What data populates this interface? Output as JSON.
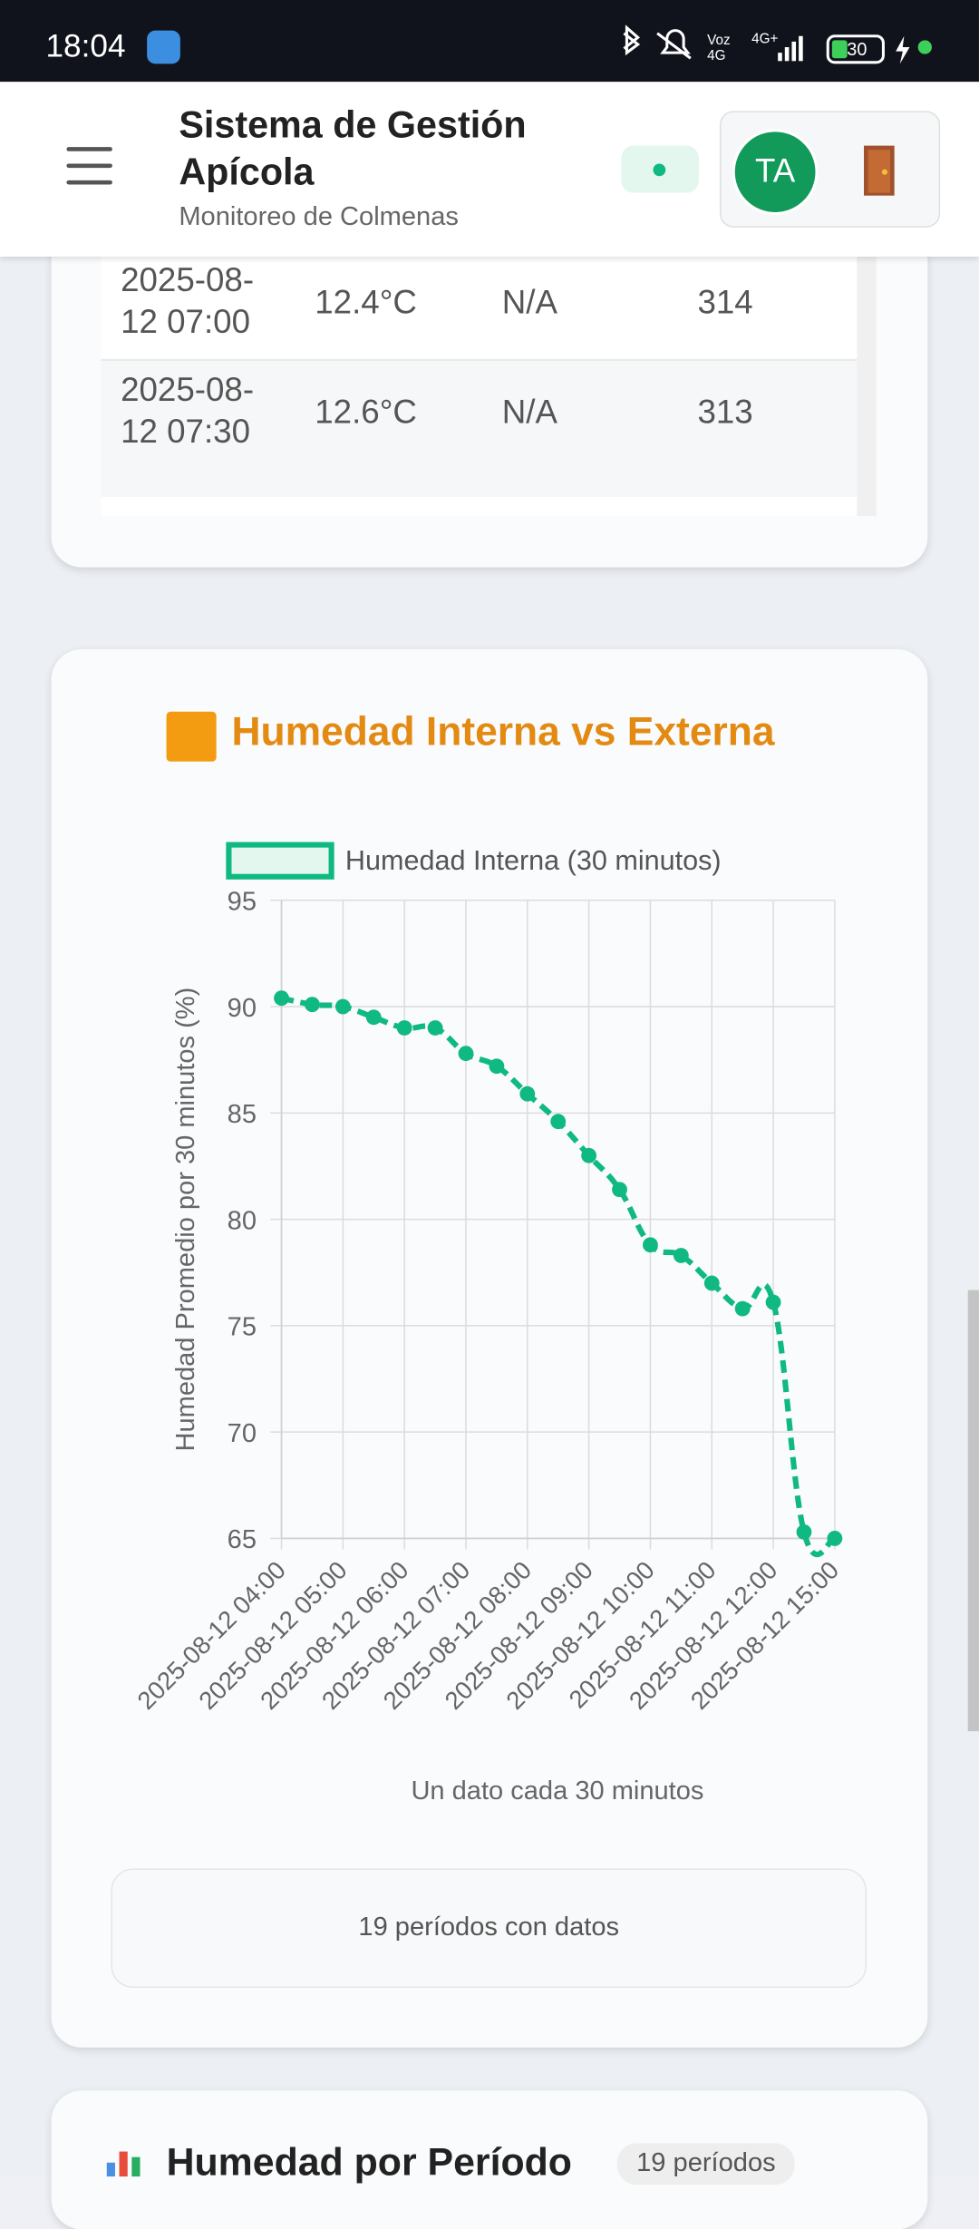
{
  "status_bar": {
    "time": "18:04",
    "battery": "30"
  },
  "header": {
    "title": "Sistema de Gestión Apícola",
    "subtitle": "Monitoreo de Colmenas",
    "avatar": "TA"
  },
  "table": {
    "rows": [
      [
        "2025-08-12 07:00",
        "12.4°C",
        "N/A",
        314
      ],
      [
        "2025-08-12 07:30",
        "12.6°C",
        "N/A",
        313
      ]
    ]
  },
  "chart_data": {
    "type": "line",
    "title": "Humedad Interna vs Externa",
    "y_label": "Humedad Promedio por 30 minutos (%)",
    "x_label": "Un dato cada 30 minutos",
    "categories": [
      "2025-08-12 04:00",
      null,
      "2025-08-12 05:00",
      null,
      "2025-08-12 06:00",
      null,
      "2025-08-12 07:00",
      null,
      "2025-08-12 08:00",
      null,
      "2025-08-12 09:00",
      null,
      "2025-08-12 10:00",
      null,
      "2025-08-12 11:00",
      null,
      "2025-08-12 12:00",
      null,
      "2025-08-12 15:00"
    ],
    "series": [
      {
        "name": "Humedad Interna (30 minutos)",
        "color": "#10b981",
        "fill": "#e3f7ef",
        "values": [
          90.4,
          90.1,
          90.0,
          89.5,
          89.0,
          89.0,
          87.8,
          87.2,
          85.9,
          84.6,
          83.0,
          81.4,
          78.8,
          78.3,
          77.0,
          75.8,
          76.1,
          65.3,
          65.0
        ]
      }
    ],
    "ylim": [
      65,
      95
    ],
    "yticks": [
      65,
      70,
      75,
      80,
      85,
      90,
      95
    ],
    "grid": true,
    "legend": "top"
  },
  "summary": "19 períodos con datos",
  "next_card": {
    "title": "Humedad por Período",
    "badge": "19 períodos"
  }
}
